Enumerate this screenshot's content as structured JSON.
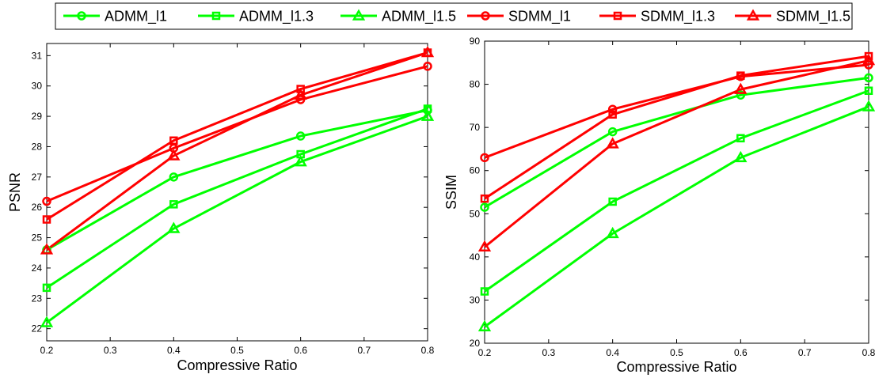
{
  "legend": {
    "entries": [
      {
        "label": "ADMM_l1",
        "color": "#00ff00",
        "marker": "circle"
      },
      {
        "label": "ADMM_l1.3",
        "color": "#00ff00",
        "marker": "square"
      },
      {
        "label": "ADMM_l1.5",
        "color": "#00ff00",
        "marker": "triangle"
      },
      {
        "label": "SDMM_l1",
        "color": "#ff0000",
        "marker": "circle"
      },
      {
        "label": "SDMM_l1.3",
        "color": "#ff0000",
        "marker": "square"
      },
      {
        "label": "SDMM_l1.5",
        "color": "#ff0000",
        "marker": "triangle"
      }
    ]
  },
  "chart_data": [
    {
      "type": "line",
      "title": "",
      "xlabel": "Compressive Ratio",
      "ylabel": "PSNR",
      "xlim": [
        0.2,
        0.8
      ],
      "ylim": [
        21.6,
        31.4
      ],
      "xticks": [
        0.2,
        0.3,
        0.4,
        0.5,
        0.6,
        0.7,
        0.8
      ],
      "xtick_labels": [
        "0.2",
        "0.3",
        "0.4",
        "0.5",
        "0.6",
        "0.7",
        "0.8"
      ],
      "yticks": [
        22,
        23,
        24,
        25,
        26,
        27,
        28,
        29,
        30,
        31
      ],
      "ytick_labels": [
        "22",
        "23",
        "24",
        "25",
        "26",
        "27",
        "28",
        "29",
        "30",
        "31"
      ],
      "grid": false,
      "x": [
        0.2,
        0.4,
        0.6,
        0.8
      ],
      "series": [
        {
          "name": "ADMM_l1",
          "color": "#00ff00",
          "marker": "circle",
          "values": [
            24.6,
            27.0,
            28.35,
            29.2
          ]
        },
        {
          "name": "ADMM_l1.3",
          "color": "#00ff00",
          "marker": "square",
          "values": [
            23.35,
            26.1,
            27.75,
            29.25
          ]
        },
        {
          "name": "ADMM_l1.5",
          "color": "#00ff00",
          "marker": "triangle",
          "values": [
            22.2,
            25.3,
            27.5,
            29.0
          ]
        },
        {
          "name": "SDMM_l1",
          "color": "#ff0000",
          "marker": "circle",
          "values": [
            26.2,
            27.95,
            29.55,
            30.65
          ]
        },
        {
          "name": "SDMM_l1.3",
          "color": "#ff0000",
          "marker": "square",
          "values": [
            25.6,
            28.2,
            29.9,
            31.1
          ]
        },
        {
          "name": "SDMM_l1.5",
          "color": "#ff0000",
          "marker": "triangle",
          "values": [
            24.6,
            27.7,
            29.7,
            31.1
          ]
        }
      ]
    },
    {
      "type": "line",
      "title": "",
      "xlabel": "Compressive Ratio",
      "ylabel": "SSIM",
      "xlim": [
        0.2,
        0.8
      ],
      "ylim": [
        20,
        90
      ],
      "xticks": [
        0.2,
        0.3,
        0.4,
        0.5,
        0.6,
        0.7,
        0.8
      ],
      "xtick_labels": [
        "0.2",
        "0.3",
        "0.4",
        "0.5",
        "0.6",
        "0.7",
        "0.8"
      ],
      "yticks": [
        20,
        30,
        40,
        50,
        60,
        70,
        80,
        90
      ],
      "ytick_labels": [
        "20",
        "30",
        "40",
        "50",
        "60",
        "70",
        "80",
        "90"
      ],
      "grid": false,
      "x": [
        0.2,
        0.4,
        0.6,
        0.8
      ],
      "series": [
        {
          "name": "ADMM_l1",
          "color": "#00ff00",
          "marker": "circle",
          "values": [
            51.5,
            69.0,
            77.5,
            81.5
          ]
        },
        {
          "name": "ADMM_l1.3",
          "color": "#00ff00",
          "marker": "square",
          "values": [
            32.0,
            52.8,
            67.5,
            78.5
          ]
        },
        {
          "name": "ADMM_l1.5",
          "color": "#00ff00",
          "marker": "triangle",
          "values": [
            23.8,
            45.4,
            63.0,
            74.8
          ]
        },
        {
          "name": "SDMM_l1",
          "color": "#ff0000",
          "marker": "circle",
          "values": [
            63.0,
            74.2,
            81.8,
            84.5
          ]
        },
        {
          "name": "SDMM_l1.3",
          "color": "#ff0000",
          "marker": "square",
          "values": [
            53.5,
            73.0,
            82.0,
            86.5
          ]
        },
        {
          "name": "SDMM_l1.5",
          "color": "#ff0000",
          "marker": "triangle",
          "values": [
            42.3,
            66.2,
            78.8,
            85.5
          ]
        }
      ]
    }
  ]
}
